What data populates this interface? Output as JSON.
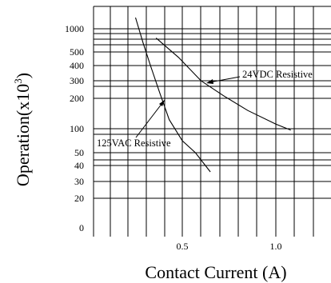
{
  "chart_data": {
    "type": "line",
    "xlabel": "Contact Current (A)",
    "ylabel": {
      "base": "Operation(x10",
      "exp": "3",
      "close": ")"
    },
    "x_ticks": [
      {
        "value": 0.5,
        "label": "0.5"
      },
      {
        "value": 1.0,
        "label": "1.0"
      }
    ],
    "y_ticks": [
      {
        "value": 1000,
        "label": "1000"
      },
      {
        "value": 500,
        "label": "500"
      },
      {
        "value": 400,
        "label": "400"
      },
      {
        "value": 300,
        "label": "300"
      },
      {
        "value": 200,
        "label": "200"
      },
      {
        "value": 100,
        "label": "100"
      },
      {
        "value": 50,
        "label": "50"
      },
      {
        "value": 40,
        "label": "40"
      },
      {
        "value": 30,
        "label": "30"
      },
      {
        "value": 20,
        "label": "20"
      },
      {
        "value": 0,
        "label": "0"
      }
    ],
    "xlim": [
      0,
      1.25
    ],
    "series": [
      {
        "name": "125VAC Resistive",
        "points": [
          [
            0.25,
            1500
          ],
          [
            0.29,
            700
          ],
          [
            0.33,
            400
          ],
          [
            0.38,
            230
          ],
          [
            0.43,
            130
          ],
          [
            0.5,
            75
          ],
          [
            0.57,
            50
          ],
          [
            0.65,
            36
          ]
        ]
      },
      {
        "name": "24VDC Resistive",
        "points": [
          [
            0.36,
            800
          ],
          [
            0.48,
            460
          ],
          [
            0.6,
            300
          ],
          [
            0.72,
            215
          ],
          [
            0.85,
            160
          ],
          [
            1.0,
            115
          ],
          [
            1.08,
            97
          ]
        ]
      }
    ],
    "grid": true
  }
}
